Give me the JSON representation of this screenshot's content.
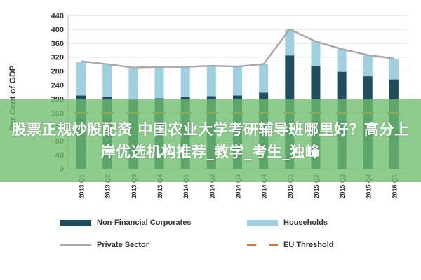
{
  "chart_data": {
    "type": "bar",
    "ylabel": "Per Cent of GDP",
    "ylim": [
      0,
      440
    ],
    "yticks": [
      0,
      40,
      80,
      120,
      160,
      200,
      240,
      280,
      320,
      360,
      400,
      440
    ],
    "grid": true,
    "categories": [
      "2013 Q1",
      "2013 Q2",
      "2013 Q3",
      "2013 Q4",
      "2014 Q1",
      "2014 Q2",
      "2014 Q3",
      "2014 Q4",
      "2015 Q1",
      "2015 Q2",
      "2015 Q3",
      "2015 Q4",
      "2016 Q1"
    ],
    "series": [
      {
        "name": "Non-Financial Corporates",
        "kind": "bar-stacked",
        "color": "#1f4e5f",
        "values": [
          210,
          205,
          198,
          202,
          205,
          208,
          210,
          218,
          325,
          295,
          278,
          265,
          256
        ]
      },
      {
        "name": "Households",
        "kind": "bar-stacked",
        "color": "#9fd0df",
        "values": [
          97,
          93,
          90,
          89,
          87,
          86,
          82,
          82,
          75,
          70,
          65,
          60,
          60
        ]
      },
      {
        "name": "Private Sector",
        "kind": "line",
        "color": "#a9a9a9",
        "values": [
          308,
          300,
          290,
          292,
          292,
          295,
          293,
          300,
          400,
          365,
          343,
          326,
          316
        ]
      },
      {
        "name": "EU Threshold",
        "kind": "dashed-line",
        "color": "#e8711a",
        "values": [
          160,
          160,
          160,
          160,
          160,
          160,
          160,
          160,
          160,
          160,
          160,
          160,
          160
        ]
      }
    ],
    "legend_position": "bottom"
  },
  "overlay": {
    "text": "股票正规炒股配资 中国农业大学考研辅导班哪里好？高分上岸优选机构推荐_教学_考生_独峰"
  }
}
